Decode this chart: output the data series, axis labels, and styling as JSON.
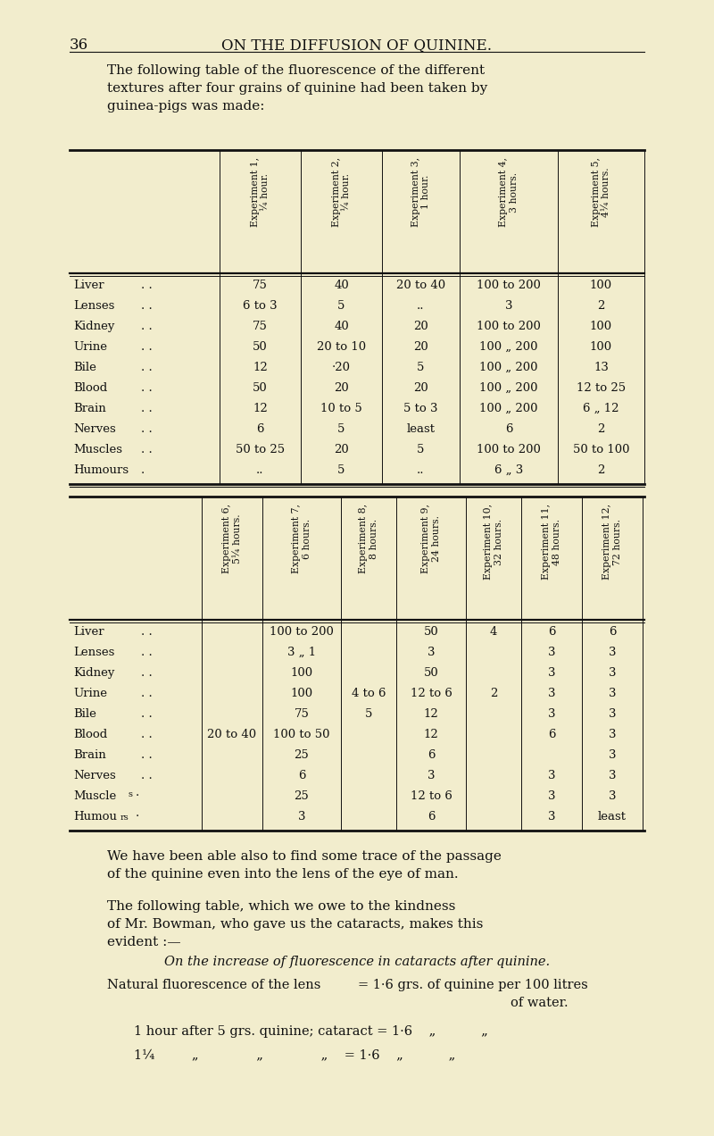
{
  "bg_color": "#f2edcd",
  "page_number": "36",
  "page_title": "ON THE DIFFUSION OF QUININE.",
  "table1_headers": [
    "Experiment 1,\n¼ hour.",
    "Experiment 2,\n¼ hour.",
    "Experiment 3,\n1 hour.",
    "Experiment 4,\n3 hours.",
    "Experiment 5,\n4¼ hours."
  ],
  "table2_headers": [
    "Experiment 6,\n5¼ hours.",
    "Experiment 7,\n6 hours.",
    "Experiment 8,\n8 hours.",
    "Experiment 9,\n24 hours.",
    "Experiment 10,\n32 hours.",
    "Experiment 11,\n48 hours.",
    "Experiment 12,\n72 hours."
  ],
  "row_names": [
    "Liver",
    "Lenses",
    "Kidney",
    "Urine",
    "Bile",
    "Blood",
    "Brain",
    "Nerves",
    "Muscles",
    "Humours"
  ],
  "row_dots": [
    ". .",
    ". .",
    ". .",
    ". .",
    ". .",
    ". .",
    ". .",
    ". .",
    ". .",
    "."
  ],
  "table1_data": [
    [
      "75",
      "40",
      "20 to 40",
      "100 to 200",
      "100"
    ],
    [
      "6 to 3",
      "5",
      "..",
      "3",
      "2"
    ],
    [
      "75",
      "40",
      "20",
      "100 to 200",
      "100"
    ],
    [
      "50",
      "20 to 10",
      "20",
      "100 „ 200",
      "100"
    ],
    [
      "12",
      "·20",
      "5",
      "100 „ 200",
      "13"
    ],
    [
      "50",
      "20",
      "20",
      "100 „ 200",
      "12 to 25"
    ],
    [
      "12",
      "10 to 5",
      "5 to 3",
      "100 „ 200",
      "6 „ 12"
    ],
    [
      "6",
      "5",
      "least",
      "6",
      "2"
    ],
    [
      "50 to 25",
      "20",
      "5",
      "100 to 200",
      "50 to 100"
    ],
    [
      "..",
      "5",
      "..",
      "6 „ 3",
      "2"
    ]
  ],
  "table2_data": [
    [
      "",
      "100 to 200",
      "",
      "50",
      "4",
      "6",
      "6"
    ],
    [
      "",
      "3 „ 1",
      "",
      "3",
      "",
      "3",
      "3"
    ],
    [
      "",
      "100",
      "",
      "50",
      "",
      "3",
      "3"
    ],
    [
      "",
      "100",
      "4 to 6",
      "12 to 6",
      "2",
      "3",
      "3"
    ],
    [
      "",
      "75",
      "5",
      "12",
      "",
      "3",
      "3"
    ],
    [
      "20 to 40",
      "100 to 50",
      "",
      "12",
      "",
      "6",
      "3"
    ],
    [
      "",
      "25",
      "",
      "6",
      "",
      "",
      "3"
    ],
    [
      "",
      "6",
      "",
      "3",
      "",
      "3",
      "3"
    ],
    [
      "",
      "25",
      "",
      "12 to 6",
      "",
      "3",
      "3"
    ],
    [
      "",
      "3",
      "",
      "6",
      "",
      "3",
      "least"
    ]
  ]
}
